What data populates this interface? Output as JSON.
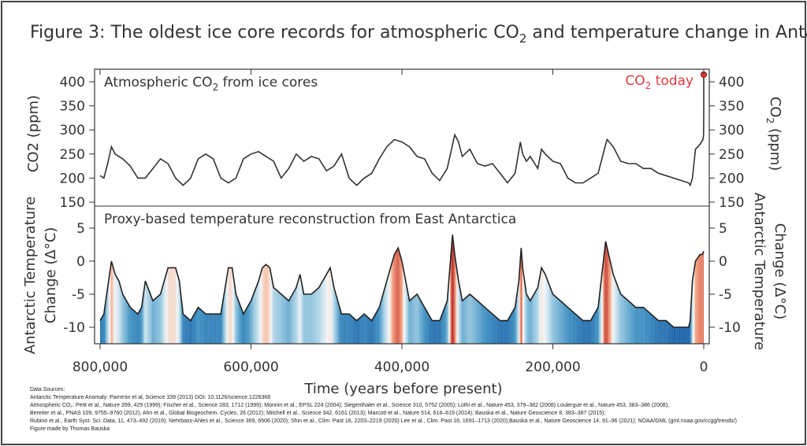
{
  "title": {
    "prefix": "Figure 3:  The oldest ice core records for atmospheric CO",
    "sub": "2",
    "suffix": " and temperature change in Antarctica"
  },
  "co2_panel": {
    "label_prefix": "Atmospheric CO",
    "label_sub": "2",
    "label_suffix": " from ice cores",
    "today_prefix": "CO",
    "today_sub": "2",
    "today_suffix": " today",
    "ylabel_prefix": "CO",
    "ylabel_sub": "2",
    "ylabel_suffix": " (ppm)"
  },
  "temp_panel": {
    "label": "Proxy-based temperature reconstruction from East Antarctica",
    "ylabel_line1": "Antarctic Temperature",
    "ylabel_line2": "Change (Δ°C)"
  },
  "xlabel": "Time (years before present)",
  "colors": {
    "co2_line": "#333333",
    "today_marker": "#e0393e",
    "warm": "#c0392b",
    "cold": "#2166ac"
  },
  "sources": [
    "Data Sources:",
    "Antarctic Temperature Anomaly: Parrenin et al, Science 339 (2013) DOI: 10.1126/science.1226368",
    "Atmospheric CO₂:  Petit et al., Nature 399, 429 (1999); Fischer et al., Science 283, 1712 (1999); Monnin et al., EPSL 224 (2004); Siegenthaler et al., Science 310, 5752 (2005); Lüthi et al., Nature 453, 379–382 (2008) Loulergue et al., Nature 453, 383–386 (2008);",
    "Bereiter et al., PNAS 109, 9755–9760 (2012); Ahn et al., Global Biogeochem. Cycles, 26  (2012); Mitchell et al., Science 342, 6161 (2013); Marcott et al., Nature 514, 616–619 (2014);  Bauska et al., Nature Geoscience 8, 383–387 (2015);",
    "Rubino et al., Earth Syst. Sci. Data, 11, 473–492 (2019); Nehrbass-Ahles et al., Science 369, 6506 (2020); Shin et al., Clim. Past 16, 2203–2219 (2020) Lee et al., Clim. Past 16, 1691–1713 (2020);Bauska et al., Nature Geoscience 14, 91–96 (2021); NOAA/GML (gml.noaa.gov/ccgg/trends/)",
    "Figure made by Thomas Bauska"
  ],
  "chart_data": [
    {
      "type": "line",
      "xlabel": "Time (years before present)",
      "ylabel": "CO2 (ppm)",
      "xlim": [
        800000,
        0
      ],
      "ylim": [
        150,
        420
      ],
      "x_ticks": [
        "800,000",
        "600,000",
        "400,000",
        "200,000",
        "0"
      ],
      "y_ticks": [
        "150",
        "200",
        "250",
        "300",
        "350",
        "400"
      ],
      "annotation": "CO2 today",
      "x": [
        800000,
        795000,
        790000,
        785000,
        780000,
        770000,
        760000,
        750000,
        740000,
        730000,
        720000,
        710000,
        700000,
        690000,
        680000,
        670000,
        660000,
        650000,
        640000,
        630000,
        620000,
        610000,
        600000,
        590000,
        580000,
        570000,
        560000,
        550000,
        540000,
        530000,
        520000,
        510000,
        500000,
        490000,
        480000,
        470000,
        460000,
        450000,
        440000,
        430000,
        420000,
        410000,
        400000,
        390000,
        380000,
        370000,
        360000,
        350000,
        340000,
        330000,
        325000,
        320000,
        310000,
        300000,
        290000,
        280000,
        270000,
        260000,
        250000,
        243000,
        240000,
        235000,
        230000,
        220000,
        215000,
        210000,
        200000,
        190000,
        180000,
        170000,
        160000,
        150000,
        140000,
        130000,
        128000,
        120000,
        110000,
        100000,
        90000,
        80000,
        70000,
        60000,
        50000,
        40000,
        30000,
        20000,
        18000,
        15000,
        11000,
        5000,
        1000,
        200,
        50,
        0
      ],
      "y": [
        205,
        200,
        230,
        265,
        250,
        240,
        225,
        200,
        200,
        220,
        240,
        230,
        200,
        185,
        200,
        240,
        250,
        240,
        200,
        190,
        200,
        240,
        250,
        255,
        245,
        235,
        200,
        220,
        250,
        235,
        245,
        240,
        215,
        225,
        250,
        200,
        185,
        200,
        210,
        240,
        265,
        280,
        275,
        265,
        245,
        240,
        210,
        195,
        220,
        290,
        275,
        245,
        260,
        230,
        225,
        230,
        210,
        190,
        210,
        275,
        250,
        235,
        245,
        220,
        260,
        250,
        235,
        230,
        200,
        190,
        190,
        200,
        210,
        270,
        280,
        265,
        235,
        230,
        230,
        220,
        220,
        210,
        205,
        200,
        195,
        190,
        185,
        200,
        260,
        270,
        280,
        290,
        340,
        415
      ]
    },
    {
      "type": "area",
      "xlabel": "Time (years before present)",
      "ylabel": "Antarctic Temperature Change (Δ°C)",
      "xlim": [
        800000,
        0
      ],
      "ylim": [
        -12.5,
        7
      ],
      "y_ticks": [
        "5",
        "0",
        "-5",
        "-10"
      ],
      "x": [
        800000,
        795000,
        790000,
        785000,
        780000,
        775000,
        770000,
        760000,
        750000,
        745000,
        740000,
        730000,
        720000,
        710000,
        700000,
        695000,
        690000,
        680000,
        670000,
        660000,
        650000,
        640000,
        630000,
        625000,
        620000,
        610000,
        600000,
        590000,
        585000,
        580000,
        575000,
        570000,
        560000,
        550000,
        540000,
        535000,
        530000,
        520000,
        510000,
        500000,
        495000,
        490000,
        480000,
        470000,
        460000,
        450000,
        440000,
        430000,
        420000,
        410000,
        405000,
        400000,
        395000,
        390000,
        380000,
        370000,
        360000,
        350000,
        340000,
        335000,
        333000,
        330000,
        325000,
        320000,
        310000,
        300000,
        290000,
        280000,
        270000,
        260000,
        250000,
        245000,
        242000,
        240000,
        235000,
        230000,
        220000,
        215000,
        210000,
        200000,
        190000,
        180000,
        170000,
        160000,
        150000,
        140000,
        130000,
        128000,
        120000,
        110000,
        100000,
        90000,
        80000,
        70000,
        60000,
        50000,
        40000,
        30000,
        20000,
        18000,
        15000,
        11000,
        5000,
        2000,
        0
      ],
      "y": [
        -9,
        -8,
        -4,
        0,
        -2,
        -3,
        -5,
        -7,
        -8,
        -7,
        -3,
        -6,
        -5,
        -1,
        -1,
        -3,
        -8,
        -9,
        -7,
        -8,
        -8,
        -8,
        -1,
        -1,
        -5,
        -8,
        -6,
        -3,
        -1,
        -0.5,
        -1,
        -4,
        -5,
        -6,
        -4,
        -2,
        -5,
        -5,
        -4,
        -2,
        -1,
        -4,
        -8,
        -8,
        -9,
        -8,
        -9,
        -7,
        -3,
        1,
        2,
        0,
        -3,
        -6,
        -5,
        -7,
        -9,
        -9,
        -6,
        1,
        4,
        1,
        -3,
        -6,
        -5,
        -6,
        -7,
        -8,
        -9,
        -9,
        -7,
        -3,
        2,
        -1,
        -5,
        -6,
        -4,
        -1,
        -2,
        -5,
        -6,
        -7,
        -8,
        -9,
        -9,
        -7,
        3,
        2,
        -2,
        -5,
        -6,
        -7,
        -7,
        -8,
        -9,
        -9,
        -10,
        -10,
        -10,
        -9,
        -3,
        0,
        1,
        1,
        1.5
      ]
    }
  ]
}
